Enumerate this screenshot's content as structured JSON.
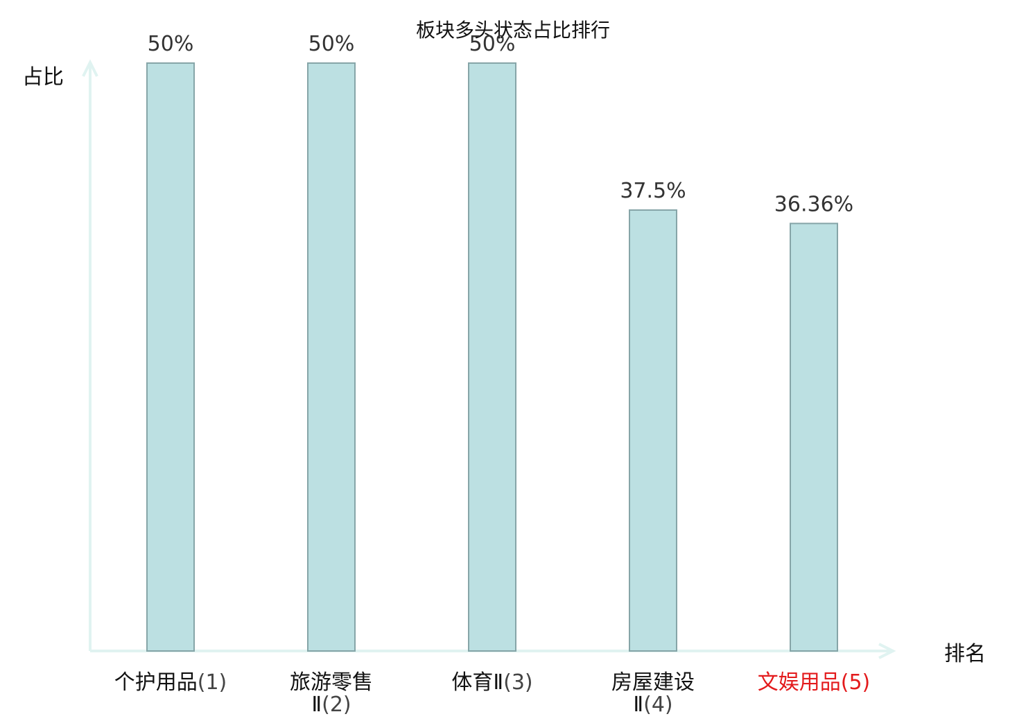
{
  "chart_data": {
    "type": "bar",
    "title": "板块多头状态占比排行",
    "ylabel": "占比",
    "xlabel": "排名",
    "categories": [
      {
        "name_lines": [
          "个护用品"
        ],
        "rank": "(1)"
      },
      {
        "name_lines": [
          "旅游零售",
          "Ⅱ"
        ],
        "rank": "(2)"
      },
      {
        "name_lines": [
          "体育Ⅱ"
        ],
        "rank": "(3)"
      },
      {
        "name_lines": [
          "房屋建设",
          "Ⅱ"
        ],
        "rank": "(4)"
      },
      {
        "name_lines": [
          "文娱用品"
        ],
        "rank": "(5)"
      }
    ],
    "values": [
      50,
      50,
      50,
      37.5,
      36.36
    ],
    "value_labels": [
      "50%",
      "50%",
      "50%",
      "37.5%",
      "36.36%"
    ],
    "highlight_index": 4,
    "ylim": [
      0,
      50
    ],
    "grid": false,
    "colors": {
      "bar_fill": "#bce0e2",
      "bar_stroke": "#86a5a8",
      "axis": "#e0f3f1",
      "highlight_text": "#e31a1c",
      "value_text": "#333333"
    }
  }
}
